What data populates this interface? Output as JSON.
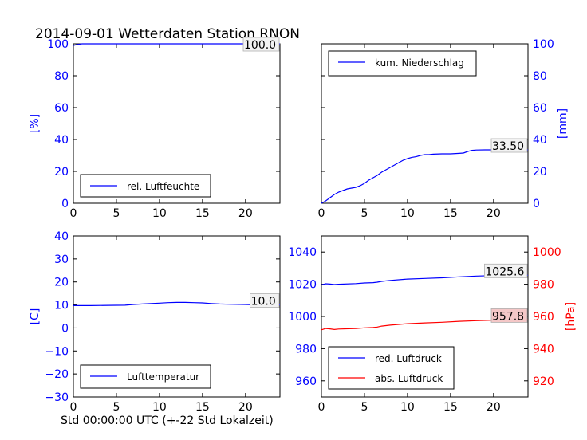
{
  "title": "2014-09-01 Wetterdaten Station RNON",
  "xlabel": "Std 00:00:00 UTC (+-22 Std Lokalzeit)",
  "colors": {
    "blue": "#0000ff",
    "red": "#ff0000",
    "black": "#000000",
    "label_bg_red": "#f4c7c7",
    "label_bg_gray": "#f2f2f2"
  },
  "chart_data": [
    {
      "type": "line",
      "panel": "top-left",
      "ylabel": "[%]",
      "ylabel_color": "#0000ff",
      "xlim": [
        0,
        24
      ],
      "ylim": [
        0,
        100
      ],
      "xticks": [
        0,
        5,
        10,
        15,
        20
      ],
      "yticks": [
        0,
        20,
        40,
        60,
        80,
        100
      ],
      "legend": "lower-left",
      "series": [
        {
          "name": "rel. Luftfeuchte",
          "color": "#0000ff",
          "axis": "left",
          "x": [
            0,
            0.5,
            1,
            24
          ],
          "y": [
            99,
            99.6,
            100,
            100
          ],
          "last_value_label": "100.0"
        }
      ]
    },
    {
      "type": "line",
      "panel": "top-right",
      "ylabel": "[mm]",
      "ylabel_color": "#0000ff",
      "yaxis_side": "right",
      "xlim": [
        0,
        24
      ],
      "ylim": [
        0,
        100
      ],
      "xticks": [
        0,
        5,
        10,
        15,
        20
      ],
      "yticks": [
        0,
        20,
        40,
        60,
        80,
        100
      ],
      "legend": "top-left",
      "series": [
        {
          "name": "kum. Niederschlag",
          "color": "#0000ff",
          "axis": "right",
          "x": [
            0,
            0.5,
            1,
            1.5,
            2,
            2.5,
            3,
            3.5,
            4,
            4.5,
            5,
            5.5,
            6,
            6.5,
            7,
            7.5,
            8,
            8.5,
            9,
            9.5,
            10,
            10.5,
            11,
            11.5,
            12,
            12.5,
            13,
            14,
            15,
            16,
            16.5,
            17,
            17.5,
            18,
            19,
            20,
            21,
            22,
            23,
            24
          ],
          "y": [
            0,
            1.5,
            3.5,
            5.5,
            7,
            8,
            9,
            9.5,
            10,
            11,
            12.5,
            14.5,
            16,
            17.5,
            19.5,
            21,
            22.5,
            24,
            25.5,
            27,
            28,
            28.8,
            29.2,
            30,
            30.5,
            30.5,
            30.8,
            31,
            31,
            31.3,
            31.5,
            32.5,
            33.2,
            33.4,
            33.5,
            33.5,
            33.5,
            33.5,
            33.5,
            33.5
          ],
          "last_value_label": "33.50"
        }
      ]
    },
    {
      "type": "line",
      "panel": "bottom-left",
      "ylabel": "[C]",
      "ylabel_color": "#0000ff",
      "xlim": [
        0,
        24
      ],
      "ylim": [
        -30,
        40
      ],
      "xticks": [
        0,
        5,
        10,
        15,
        20
      ],
      "yticks": [
        -30,
        -20,
        -10,
        0,
        10,
        20,
        30,
        40
      ],
      "legend": "lower-left",
      "series": [
        {
          "name": "Lufttemperatur",
          "color": "#0000ff",
          "axis": "left",
          "x": [
            0,
            2,
            4,
            6,
            7,
            8,
            9,
            10,
            11,
            12,
            13,
            14,
            15,
            16,
            17,
            18,
            20,
            22,
            24
          ],
          "y": [
            9.7,
            9.7,
            9.8,
            9.9,
            10.2,
            10.4,
            10.6,
            10.8,
            11.0,
            11.1,
            11.1,
            11.0,
            10.9,
            10.6,
            10.4,
            10.3,
            10.2,
            10.0,
            10.0
          ],
          "last_value_label": "10.0"
        }
      ]
    },
    {
      "type": "line",
      "panel": "bottom-right",
      "xlim": [
        0,
        24
      ],
      "ylim_left": [
        950,
        1050
      ],
      "ylim_right": [
        910,
        1010
      ],
      "xticks": [
        0,
        5,
        10,
        15,
        20
      ],
      "yticks_left": [
        960,
        980,
        1000,
        1020,
        1040
      ],
      "yticks_right": [
        920,
        940,
        960,
        980,
        1000
      ],
      "ylabel_right": "[hPa]",
      "ylabel_right_color": "#ff0000",
      "legend": "lower-left",
      "series": [
        {
          "name": "red. Luftdruck",
          "color": "#0000ff",
          "axis": "left",
          "x": [
            0,
            0.5,
            1,
            1.5,
            2,
            4,
            5,
            6,
            6.5,
            7,
            8,
            10,
            12,
            14,
            16,
            18,
            20,
            22,
            24
          ],
          "y": [
            1019.6,
            1020.3,
            1020.1,
            1019.8,
            1020.0,
            1020.4,
            1020.8,
            1021.0,
            1021.3,
            1021.8,
            1022.4,
            1023.2,
            1023.6,
            1024.0,
            1024.6,
            1025.1,
            1025.4,
            1025.6,
            1025.6
          ],
          "last_value_label": "1025.6"
        },
        {
          "name": "abs. Luftdruck",
          "color": "#ff0000",
          "axis": "right",
          "x": [
            0,
            0.5,
            1,
            1.5,
            2,
            4,
            5,
            6,
            6.5,
            7,
            8,
            10,
            12,
            14,
            16,
            18,
            20,
            22,
            24
          ],
          "y": [
            951.7,
            952.5,
            952.3,
            951.9,
            952.2,
            952.5,
            952.9,
            953.1,
            953.4,
            954.0,
            954.6,
            955.5,
            956.0,
            956.4,
            957.0,
            957.4,
            957.7,
            957.8,
            957.8
          ],
          "last_value_label": "957.8"
        }
      ]
    }
  ]
}
